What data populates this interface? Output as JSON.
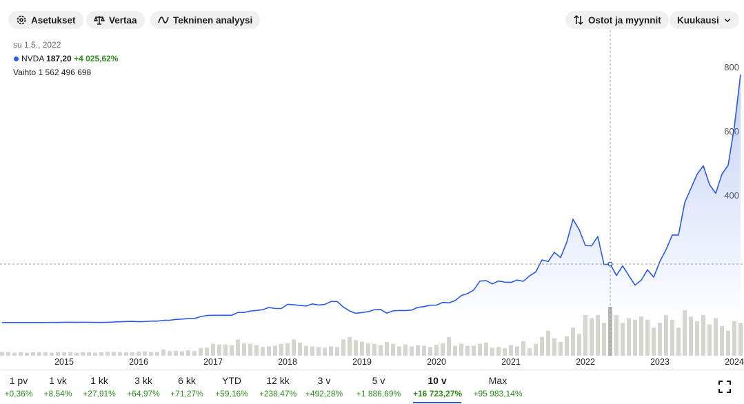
{
  "toolbar": {
    "settings": "Asetukset",
    "compare": "Vertaa",
    "technical": "Tekninen analyysi",
    "trades": "Ostot ja myynnit",
    "interval": "Kuukausi"
  },
  "tooltip": {
    "date": "su 1.5., 2022",
    "symbol": "NVDA",
    "price": "187,20",
    "change": "+4 025,62%",
    "volume_label": "Vaihto",
    "volume": "1 562 496 698"
  },
  "chart_data": {
    "type": "line",
    "categories": [
      null,
      null,
      null,
      null,
      null,
      null,
      null,
      null,
      null,
      null,
      "2015",
      null,
      null,
      null,
      null,
      null,
      null,
      null,
      null,
      null,
      null,
      null,
      "2016",
      null,
      null,
      null,
      null,
      null,
      null,
      null,
      null,
      null,
      null,
      null,
      "2017",
      null,
      null,
      null,
      null,
      null,
      null,
      null,
      null,
      null,
      null,
      null,
      "2018",
      null,
      null,
      null,
      null,
      null,
      null,
      null,
      null,
      null,
      null,
      null,
      "2019",
      null,
      null,
      null,
      null,
      null,
      null,
      null,
      null,
      null,
      null,
      null,
      "2020",
      null,
      null,
      null,
      null,
      null,
      null,
      null,
      null,
      null,
      null,
      null,
      "2021",
      null,
      null,
      null,
      null,
      null,
      null,
      null,
      null,
      null,
      null,
      null,
      "2022",
      null,
      null,
      null,
      null,
      null,
      null,
      null,
      null,
      null,
      null,
      null,
      "2023",
      null,
      null,
      null,
      null,
      null,
      null,
      null,
      null,
      null,
      null,
      null,
      "2024",
      null
    ],
    "series": [
      {
        "name": "NVDA",
        "color": "#2a59e4",
        "values": [
          4.5,
          4.6,
          4.7,
          4.8,
          4.6,
          4.6,
          4.6,
          4.6,
          5.0,
          5.0,
          5.5,
          5.5,
          5.3,
          5.5,
          5.5,
          5.0,
          5.0,
          5.5,
          6.2,
          7.1,
          8.0,
          8.2,
          7.4,
          7.8,
          8.9,
          8.9,
          11.6,
          11.8,
          14.3,
          15.3,
          17.1,
          17.1,
          23.1,
          26.7,
          27.3,
          27.3,
          27.2,
          27.2,
          35.9,
          36.1,
          40.6,
          42.4,
          44.7,
          51.7,
          48.4,
          48.4,
          61.4,
          60.0,
          57.9,
          56.2,
          62.8,
          59.2,
          61.2,
          70.2,
          70.3,
          52.7,
          40.9,
          33.4,
          35.9,
          38.5,
          44.9,
          45.2,
          33.8,
          41.1,
          42.2,
          42.0,
          43.5,
          52.1,
          54.4,
          58.8,
          59.0,
          67.4,
          65.9,
          73.1,
          88.8,
          94.9,
          106.1,
          133.8,
          135.3,
          125.4,
          134.2,
          130.6,
          129.9,
          137.0,
          133.5,
          150.1,
          162.4,
          200.0,
          194.9,
          223.8,
          207.2,
          255.7,
          326.8,
          294.1,
          244.9,
          243.9,
          272.9,
          185.5,
          187.2,
          151.6,
          181.6,
          150.9,
          121.4,
          136.8,
          169.2,
          146.1,
          195.4,
          232.2,
          277.8,
          277.5,
          378.3,
          423.0,
          467.3,
          493.6,
          435.0,
          407.8,
          467.7,
          495.2,
          615.3,
          778.0
        ]
      }
    ],
    "volume": {
      "color": "#d6d6d1",
      "highlight_color": "#b8b8b2",
      "values": [
        120000000,
        110000000,
        100000000,
        110000000,
        100000000,
        110000000,
        120000000,
        110000000,
        100000000,
        110000000,
        110000000,
        120000000,
        100000000,
        110000000,
        110000000,
        100000000,
        110000000,
        130000000,
        120000000,
        120000000,
        110000000,
        110000000,
        130000000,
        140000000,
        120000000,
        120000000,
        200000000,
        150000000,
        160000000,
        140000000,
        170000000,
        150000000,
        250000000,
        260000000,
        380000000,
        360000000,
        360000000,
        340000000,
        520000000,
        400000000,
        380000000,
        340000000,
        280000000,
        300000000,
        320000000,
        380000000,
        400000000,
        520000000,
        420000000,
        320000000,
        300000000,
        280000000,
        260000000,
        300000000,
        280000000,
        520000000,
        600000000,
        500000000,
        450000000,
        400000000,
        380000000,
        340000000,
        440000000,
        380000000,
        300000000,
        360000000,
        300000000,
        340000000,
        320000000,
        280000000,
        350000000,
        400000000,
        600000000,
        320000000,
        380000000,
        320000000,
        320000000,
        380000000,
        420000000,
        260000000,
        280000000,
        240000000,
        340000000,
        300000000,
        460000000,
        240000000,
        380000000,
        600000000,
        800000000,
        560000000,
        440000000,
        620000000,
        900000000,
        700000000,
        1300000000,
        1200000000,
        1300000000,
        1050000000,
        1562496698,
        1300000000,
        1050000000,
        1200000000,
        1150000000,
        1250000000,
        1150000000,
        900000000,
        1050000000,
        1300000000,
        1150000000,
        900000000,
        1450000000,
        1250000000,
        1100000000,
        1300000000,
        1000000000,
        1200000000,
        950000000,
        800000000,
        1100000000,
        1050000000
      ]
    },
    "hover_index": 98,
    "ylim": [
      0,
      800
    ],
    "yticks": [
      400,
      600,
      800
    ],
    "grid": false
  },
  "periods": [
    {
      "label": "1 pv",
      "change": "+0,36%"
    },
    {
      "label": "1 vk",
      "change": "+8,54%"
    },
    {
      "label": "1 kk",
      "change": "+27,91%"
    },
    {
      "label": "3 kk",
      "change": "+64,97%"
    },
    {
      "label": "6 kk",
      "change": "+71,27%"
    },
    {
      "label": "YTD",
      "change": "+59,16%"
    },
    {
      "label": "12 kk",
      "change": "+238,47%"
    },
    {
      "label": "3 v",
      "change": "+492,28%"
    },
    {
      "label": "5 v",
      "change": "+1 886,69%"
    },
    {
      "label": "10 v",
      "change": "+16 723,27%",
      "selected": true
    },
    {
      "label": "Max",
      "change": "+95 983,14%"
    }
  ]
}
